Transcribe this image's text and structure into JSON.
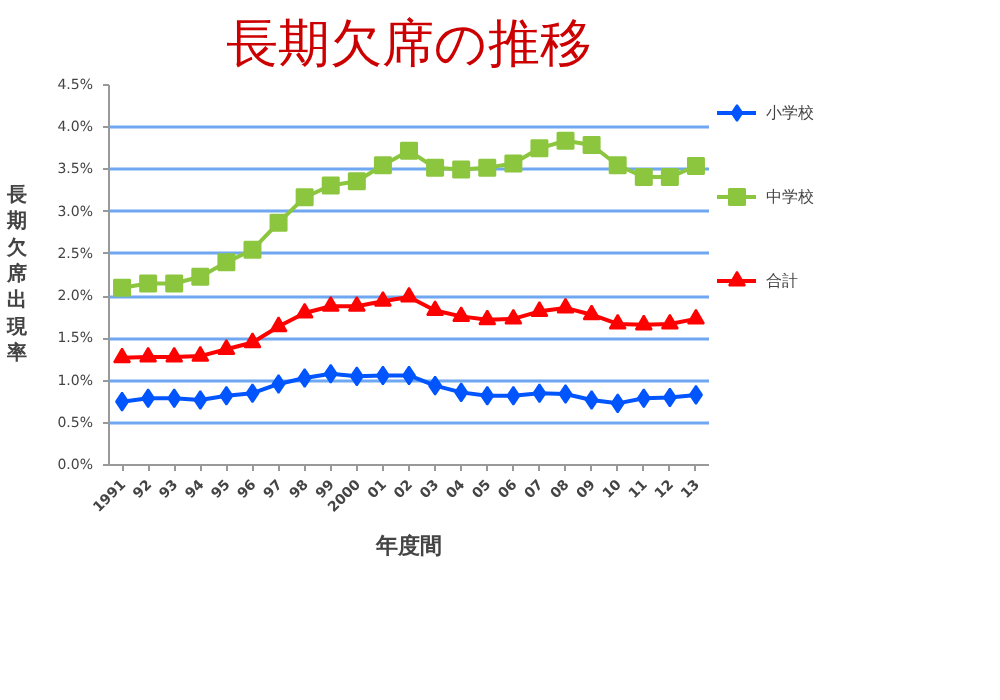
{
  "chart_data": {
    "type": "line",
    "title": "長期欠席の推移",
    "xlabel": "年度間",
    "ylabel": "長期欠席出現率",
    "categories": [
      "1991",
      "92",
      "93",
      "94",
      "95",
      "96",
      "97",
      "98",
      "99",
      "2000",
      "01",
      "02",
      "03",
      "04",
      "05",
      "06",
      "07",
      "08",
      "09",
      "10",
      "11",
      "12",
      "13"
    ],
    "series": [
      {
        "name": "小学校",
        "color": "#0055ff",
        "marker": "diamond",
        "values": [
          0.75,
          0.79,
          0.79,
          0.77,
          0.82,
          0.85,
          0.96,
          1.03,
          1.08,
          1.05,
          1.06,
          1.06,
          0.94,
          0.86,
          0.82,
          0.82,
          0.85,
          0.84,
          0.77,
          0.73,
          0.79,
          0.8,
          0.83
        ]
      },
      {
        "name": "中学校",
        "color": "#8cc63f",
        "marker": "square",
        "values": [
          2.1,
          2.15,
          2.15,
          2.23,
          2.4,
          2.55,
          2.87,
          3.17,
          3.31,
          3.36,
          3.55,
          3.72,
          3.52,
          3.5,
          3.52,
          3.57,
          3.75,
          3.84,
          3.79,
          3.55,
          3.41,
          3.41,
          3.54
        ]
      },
      {
        "name": "合計",
        "color": "#ff0000",
        "marker": "triangle",
        "values": [
          1.27,
          1.28,
          1.28,
          1.29,
          1.37,
          1.45,
          1.64,
          1.8,
          1.88,
          1.88,
          1.94,
          1.99,
          1.83,
          1.76,
          1.72,
          1.73,
          1.82,
          1.86,
          1.78,
          1.67,
          1.66,
          1.67,
          1.73
        ]
      }
    ],
    "ylim": [
      0,
      4.5
    ],
    "yticks": [
      {
        "value": 0,
        "label": "0.0%"
      },
      {
        "value": 0.5,
        "label": "0.5%"
      },
      {
        "value": 1,
        "label": "1.0%"
      },
      {
        "value": 1.5,
        "label": "1.5%"
      },
      {
        "value": 2,
        "label": "2.0%"
      },
      {
        "value": 2.5,
        "label": "2.5%"
      },
      {
        "value": 3,
        "label": "3.0%"
      },
      {
        "value": 3.5,
        "label": "3.5%"
      },
      {
        "value": 4,
        "label": "4.0%"
      },
      {
        "value": 4.5,
        "label": "4.5%"
      }
    ],
    "grid": "y",
    "legend": "right",
    "line_style": "solid"
  }
}
